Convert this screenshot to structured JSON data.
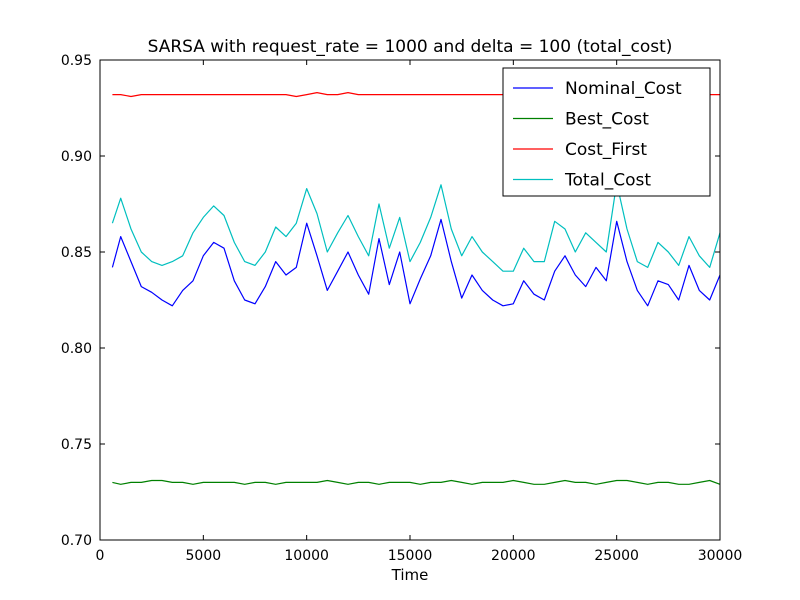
{
  "chart_data": {
    "type": "line",
    "title": "SARSA with request_rate = 1000 and delta = 100 (total_cost)",
    "xlabel": "Time",
    "ylabel": "",
    "xlim": [
      0,
      30000
    ],
    "ylim": [
      0.7,
      0.95
    ],
    "xticks": [
      0,
      5000,
      10000,
      15000,
      20000,
      25000,
      30000
    ],
    "xtick_labels": [
      "0",
      "5000",
      "10000",
      "15000",
      "20000",
      "25000",
      "30000"
    ],
    "yticks": [
      0.7,
      0.75,
      0.8,
      0.85,
      0.9,
      0.95
    ],
    "ytick_labels": [
      "0.70",
      "0.75",
      "0.80",
      "0.85",
      "0.90",
      "0.95"
    ],
    "grid": false,
    "legend_position": "top-right",
    "x": [
      600,
      1000,
      1500,
      2000,
      2500,
      3000,
      3500,
      4000,
      4500,
      5000,
      5500,
      6000,
      6500,
      7000,
      7500,
      8000,
      8500,
      9000,
      9500,
      10000,
      10500,
      11000,
      11500,
      12000,
      12500,
      13000,
      13500,
      14000,
      14500,
      15000,
      15500,
      16000,
      16500,
      17000,
      17500,
      18000,
      18500,
      19000,
      19500,
      20000,
      20500,
      21000,
      21500,
      22000,
      22500,
      23000,
      23500,
      24000,
      24500,
      25000,
      25500,
      26000,
      26500,
      27000,
      27500,
      28000,
      28500,
      29000,
      29500,
      30000
    ],
    "series": [
      {
        "name": "Nominal_Cost",
        "color": "#0000ff",
        "values": [
          0.842,
          0.858,
          0.845,
          0.832,
          0.829,
          0.825,
          0.822,
          0.83,
          0.835,
          0.848,
          0.855,
          0.852,
          0.835,
          0.825,
          0.823,
          0.832,
          0.845,
          0.838,
          0.842,
          0.865,
          0.848,
          0.83,
          0.84,
          0.85,
          0.838,
          0.828,
          0.857,
          0.833,
          0.85,
          0.823,
          0.836,
          0.848,
          0.867,
          0.845,
          0.826,
          0.838,
          0.83,
          0.825,
          0.822,
          0.823,
          0.835,
          0.828,
          0.825,
          0.84,
          0.848,
          0.838,
          0.832,
          0.842,
          0.835,
          0.866,
          0.845,
          0.83,
          0.822,
          0.835,
          0.833,
          0.825,
          0.843,
          0.83,
          0.825,
          0.838
        ]
      },
      {
        "name": "Best_Cost",
        "color": "#008000",
        "values": [
          0.73,
          0.729,
          0.73,
          0.73,
          0.731,
          0.731,
          0.73,
          0.73,
          0.729,
          0.73,
          0.73,
          0.73,
          0.73,
          0.729,
          0.73,
          0.73,
          0.729,
          0.73,
          0.73,
          0.73,
          0.73,
          0.731,
          0.73,
          0.729,
          0.73,
          0.73,
          0.729,
          0.73,
          0.73,
          0.73,
          0.729,
          0.73,
          0.73,
          0.731,
          0.73,
          0.729,
          0.73,
          0.73,
          0.73,
          0.731,
          0.73,
          0.729,
          0.729,
          0.73,
          0.731,
          0.73,
          0.73,
          0.729,
          0.73,
          0.731,
          0.731,
          0.73,
          0.729,
          0.73,
          0.73,
          0.729,
          0.729,
          0.73,
          0.731,
          0.729
        ]
      },
      {
        "name": "Cost_First",
        "color": "#ff0000",
        "values": [
          0.932,
          0.932,
          0.931,
          0.932,
          0.932,
          0.932,
          0.932,
          0.932,
          0.932,
          0.932,
          0.932,
          0.932,
          0.932,
          0.932,
          0.932,
          0.932,
          0.932,
          0.932,
          0.931,
          0.932,
          0.933,
          0.932,
          0.932,
          0.933,
          0.932,
          0.932,
          0.932,
          0.932,
          0.932,
          0.932,
          0.932,
          0.932,
          0.932,
          0.932,
          0.932,
          0.932,
          0.932,
          0.932,
          0.932,
          0.932,
          0.932,
          0.932,
          0.932,
          0.932,
          0.932,
          0.932,
          0.932,
          0.932,
          0.932,
          0.932,
          0.932,
          0.932,
          0.932,
          0.932,
          0.932,
          0.932,
          0.932,
          0.932,
          0.932,
          0.932
        ]
      },
      {
        "name": "Total_Cost",
        "color": "#00bfbf",
        "values": [
          0.865,
          0.878,
          0.862,
          0.85,
          0.845,
          0.843,
          0.845,
          0.848,
          0.86,
          0.868,
          0.874,
          0.869,
          0.855,
          0.845,
          0.843,
          0.85,
          0.863,
          0.858,
          0.865,
          0.883,
          0.87,
          0.85,
          0.86,
          0.869,
          0.858,
          0.848,
          0.875,
          0.852,
          0.868,
          0.845,
          0.855,
          0.868,
          0.885,
          0.862,
          0.848,
          0.858,
          0.85,
          0.845,
          0.84,
          0.84,
          0.852,
          0.845,
          0.845,
          0.866,
          0.862,
          0.85,
          0.86,
          0.855,
          0.85,
          0.886,
          0.862,
          0.845,
          0.842,
          0.855,
          0.85,
          0.843,
          0.858,
          0.848,
          0.842,
          0.86
        ]
      }
    ]
  }
}
